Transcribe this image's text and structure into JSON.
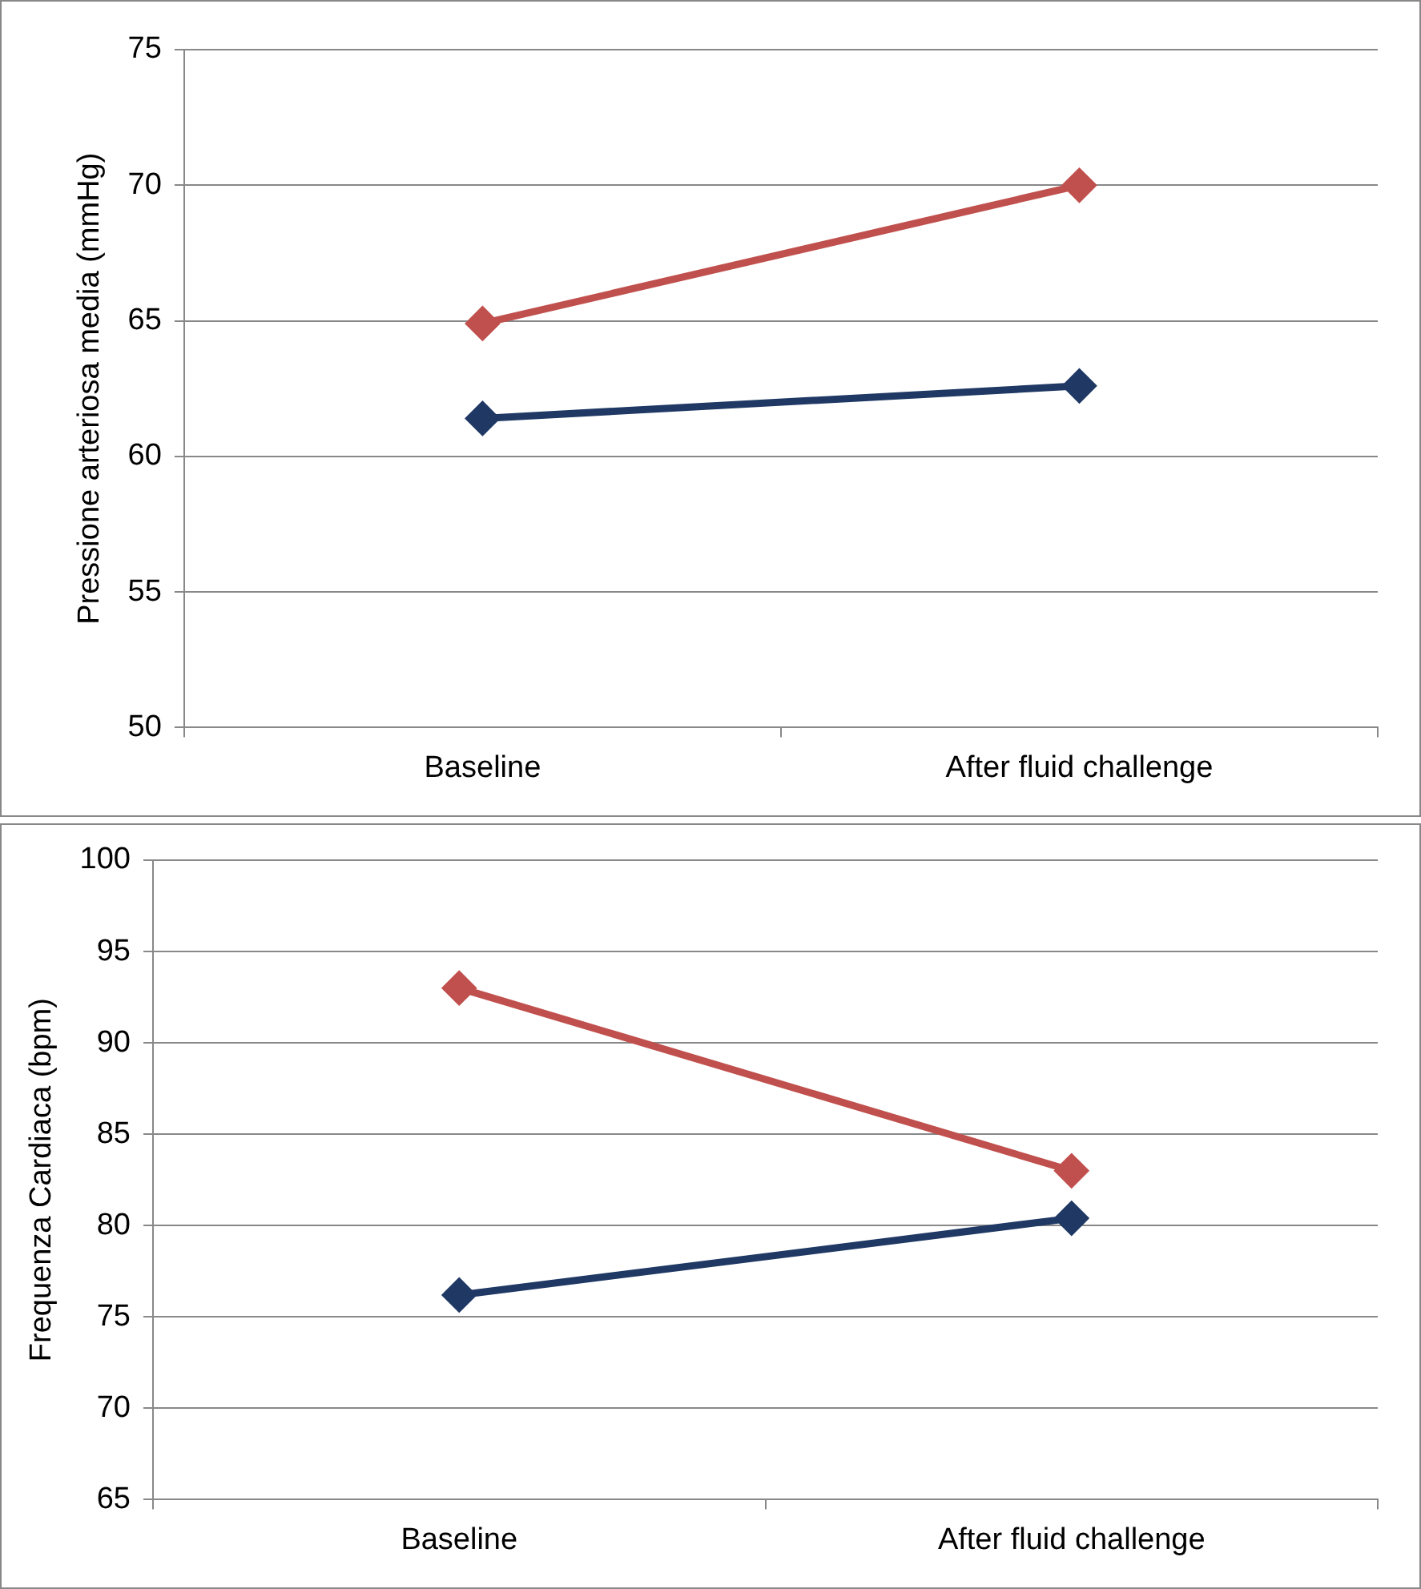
{
  "chart_data": [
    {
      "type": "line",
      "ylabel": "Pressione arteriosa media (mmHg)",
      "categories": [
        "Baseline",
        "After fluid challenge"
      ],
      "series": [
        {
          "color": "#c0504d",
          "values": [
            64.9,
            70
          ]
        },
        {
          "color": "#1f3864",
          "values": [
            61.4,
            62.6
          ]
        }
      ],
      "ylim": [
        50,
        75
      ],
      "yticks": [
        50,
        55,
        60,
        65,
        70,
        75
      ],
      "grid": "y",
      "marker": "diamond",
      "line_style": "solid"
    },
    {
      "type": "line",
      "ylabel": "Frequenza Cardiaca (bpm)",
      "categories": [
        "Baseline",
        "After fluid challenge"
      ],
      "series": [
        {
          "color": "#c0504d",
          "values": [
            93,
            83
          ]
        },
        {
          "color": "#1f3864",
          "values": [
            76.2,
            80.4
          ]
        }
      ],
      "ylim": [
        65,
        100
      ],
      "yticks": [
        65,
        70,
        75,
        80,
        85,
        90,
        95,
        100
      ],
      "grid": "y",
      "marker": "diamond",
      "line_style": "solid"
    }
  ]
}
